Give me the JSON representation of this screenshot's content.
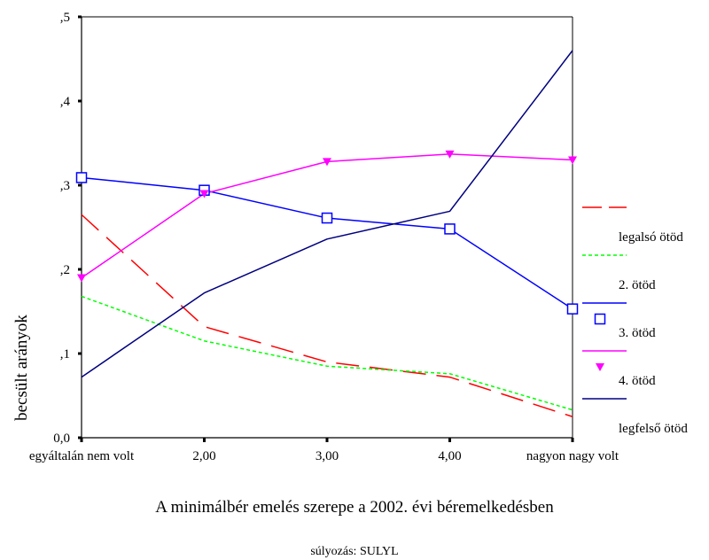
{
  "chart_data": {
    "type": "line",
    "xlabel": "A minimálbér emelés szerepe a 2002. évi béremelkedésben",
    "ylabel": "becsült arányok",
    "subtitle": "súlyozás: SULYL",
    "categories": [
      "egyáltalán nem volt",
      "2,00",
      "3,00",
      "4,00",
      "nagyon nagy volt"
    ],
    "y_tick_labels": [
      "0,0",
      ",1",
      ",2",
      ",3",
      ",4",
      ",5"
    ],
    "y_ticks": [
      0,
      0.1,
      0.2,
      0.3,
      0.4,
      0.5
    ],
    "ylim": [
      0,
      0.5
    ],
    "grid": false,
    "legend_position": "right",
    "series": [
      {
        "name": "legalsó ötöd",
        "color": "#ff0000",
        "dash": "long-dash",
        "marker": "none",
        "values": [
          0.265,
          0.132,
          0.09,
          0.072,
          0.025
        ]
      },
      {
        "name": "2. ötöd",
        "color": "#00ff00",
        "dash": "dotted",
        "marker": "none",
        "values": [
          0.168,
          0.115,
          0.085,
          0.076,
          0.033
        ]
      },
      {
        "name": "3. ötöd",
        "color": "#0000ff",
        "dash": "solid",
        "marker": "open-square",
        "values": [
          0.309,
          0.294,
          0.261,
          0.248,
          0.153
        ]
      },
      {
        "name": "4. ötöd",
        "color": "#ff00ff",
        "dash": "solid",
        "marker": "filled-triangle-down",
        "values": [
          0.19,
          0.29,
          0.328,
          0.337,
          0.33
        ]
      },
      {
        "name": "legfelső ötöd",
        "color": "#00007f",
        "dash": "solid",
        "marker": "none",
        "values": [
          0.072,
          0.172,
          0.236,
          0.269,
          0.46
        ]
      }
    ]
  }
}
